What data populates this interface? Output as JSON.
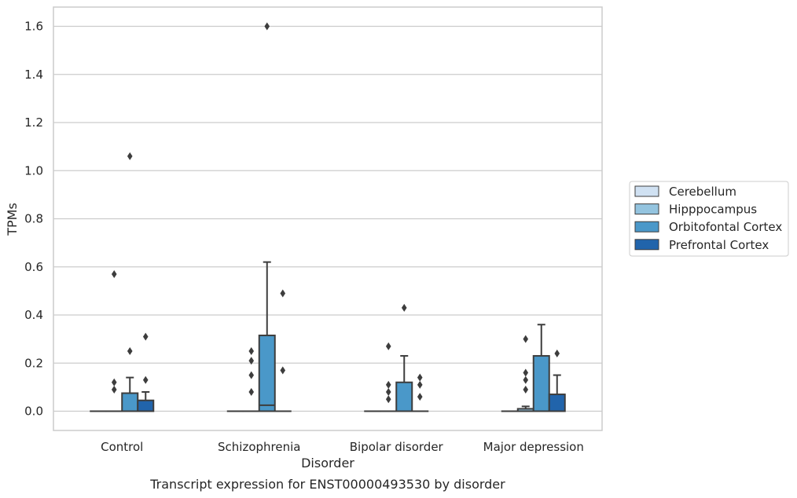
{
  "chart_data": {
    "type": "box",
    "title": "Transcript expression for ENST00000493530 by disorder",
    "xlabel": "Disorder",
    "ylabel": "TPMs",
    "ylim": [
      -0.08,
      1.68
    ],
    "yticks": [
      0.0,
      0.2,
      0.4,
      0.6,
      0.8,
      1.0,
      1.2,
      1.4,
      1.6
    ],
    "ytick_labels": [
      "0.0",
      "0.2",
      "0.4",
      "0.6",
      "0.8",
      "1.0",
      "1.2",
      "1.4",
      "1.6"
    ],
    "grid": "horizontal",
    "legend_position": "right",
    "categories": [
      "Control",
      "Schizophrenia",
      "Bipolar disorder",
      "Major depression"
    ],
    "series": [
      {
        "name": "Cerebellum",
        "color": "#d0e1f2",
        "boxes": [
          {
            "q1": 0.0,
            "median": 0.0,
            "q3": 0.0,
            "whisker_low": 0.0,
            "whisker_high": 0.0,
            "outliers": []
          },
          {
            "q1": 0.0,
            "median": 0.0,
            "q3": 0.0,
            "whisker_low": 0.0,
            "whisker_high": 0.0,
            "outliers": []
          },
          {
            "q1": 0.0,
            "median": 0.0,
            "q3": 0.0,
            "whisker_low": 0.0,
            "whisker_high": 0.0,
            "outliers": []
          },
          {
            "q1": 0.0,
            "median": 0.0,
            "q3": 0.0,
            "whisker_low": 0.0,
            "whisker_high": 0.0,
            "outliers": []
          }
        ]
      },
      {
        "name": "Hipppocampus",
        "color": "#94c4df",
        "boxes": [
          {
            "q1": 0.0,
            "median": 0.0,
            "q3": 0.0,
            "whisker_low": 0.0,
            "whisker_high": 0.0,
            "outliers": [
              0.09,
              0.12,
              0.57
            ]
          },
          {
            "q1": 0.0,
            "median": 0.0,
            "q3": 0.0,
            "whisker_low": 0.0,
            "whisker_high": 0.0,
            "outliers": [
              0.08,
              0.15,
              0.21,
              0.25
            ]
          },
          {
            "q1": 0.0,
            "median": 0.0,
            "q3": 0.0,
            "whisker_low": 0.0,
            "whisker_high": 0.0,
            "outliers": [
              0.05,
              0.08,
              0.11,
              0.27
            ]
          },
          {
            "q1": 0.0,
            "median": 0.0,
            "q3": 0.01,
            "whisker_low": 0.0,
            "whisker_high": 0.02,
            "outliers": [
              0.09,
              0.13,
              0.16,
              0.3
            ]
          }
        ]
      },
      {
        "name": "Orbitofontal Cortex",
        "color": "#4a98c9",
        "boxes": [
          {
            "q1": 0.0,
            "median": 0.0,
            "q3": 0.075,
            "whisker_low": 0.0,
            "whisker_high": 0.14,
            "outliers": [
              0.25,
              1.06
            ]
          },
          {
            "q1": 0.0,
            "median": 0.025,
            "q3": 0.315,
            "whisker_low": 0.0,
            "whisker_high": 0.62,
            "outliers": [
              1.6
            ]
          },
          {
            "q1": 0.0,
            "median": 0.0,
            "q3": 0.12,
            "whisker_low": 0.0,
            "whisker_high": 0.23,
            "outliers": [
              0.43
            ]
          },
          {
            "q1": 0.0,
            "median": 0.0,
            "q3": 0.23,
            "whisker_low": 0.0,
            "whisker_high": 0.36,
            "outliers": []
          }
        ]
      },
      {
        "name": "Prefrontal Cortex",
        "color": "#2164ab",
        "boxes": [
          {
            "q1": 0.0,
            "median": 0.0,
            "q3": 0.045,
            "whisker_low": 0.0,
            "whisker_high": 0.08,
            "outliers": [
              0.13,
              0.31
            ]
          },
          {
            "q1": 0.0,
            "median": 0.0,
            "q3": 0.0,
            "whisker_low": 0.0,
            "whisker_high": 0.0,
            "outliers": [
              0.17,
              0.49
            ]
          },
          {
            "q1": 0.0,
            "median": 0.0,
            "q3": 0.0,
            "whisker_low": 0.0,
            "whisker_high": 0.0,
            "outliers": [
              0.06,
              0.11,
              0.14
            ]
          },
          {
            "q1": 0.0,
            "median": 0.0,
            "q3": 0.07,
            "whisker_low": 0.0,
            "whisker_high": 0.15,
            "outliers": [
              0.24
            ]
          }
        ]
      }
    ]
  }
}
